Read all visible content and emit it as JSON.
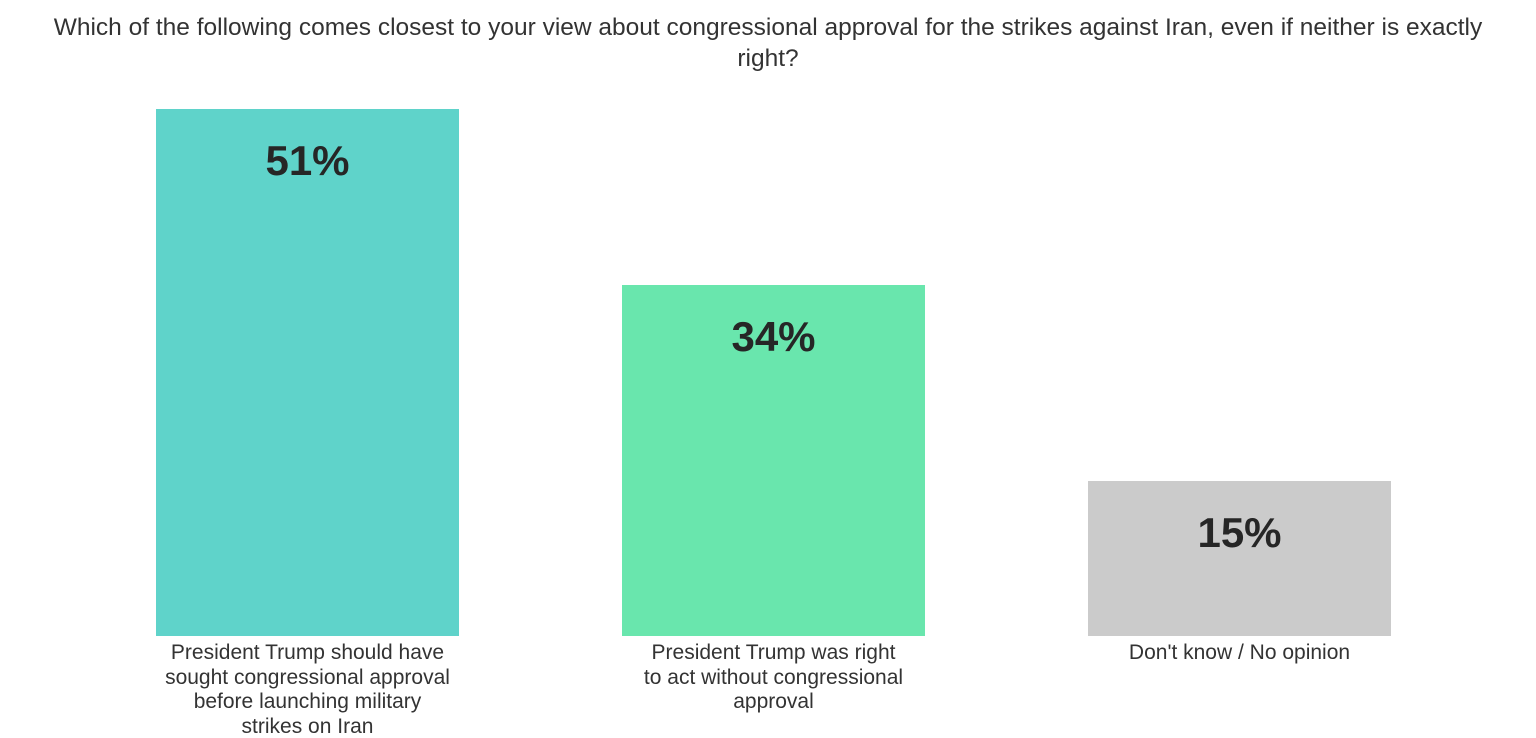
{
  "chart": {
    "title": "Which of the following comes closest to your view about congressional approval for the strikes against Iran, even if neither is exactly right?",
    "title_lines": [
      "Which of the following comes closest to your view about congressional approval for the strikes against Iran, even if neither is exactly",
      "right?"
    ]
  },
  "chart_data": {
    "type": "bar",
    "title": "Which of the following comes closest to your view about congressional approval for the strikes against Iran, even if neither is exactly right?",
    "xlabel": "",
    "ylabel": "",
    "ylim": [
      0,
      51
    ],
    "grid": false,
    "legend": false,
    "axis_lines": false,
    "background_color": "#ffffff",
    "text_color": "#333333",
    "value_label_color": "#262626",
    "categories": [
      "President Trump should have sought congressional approval before launching military strikes on Iran",
      "President Trump was right to act without congressional approval",
      "Don't know / No opinion"
    ],
    "category_lines": [
      [
        "President Trump should have",
        "sought congressional approval",
        "before launching military",
        "strikes on Iran"
      ],
      [
        "President Trump was right",
        "to act without congressional",
        "approval"
      ],
      [
        "Don't know / No opinion"
      ]
    ],
    "values": [
      51,
      34,
      15
    ],
    "value_labels": [
      "51%",
      "34%",
      "15%"
    ],
    "bar_colors": [
      "#5fd3ca",
      "#69e6ad",
      "#cbcbcb"
    ]
  }
}
